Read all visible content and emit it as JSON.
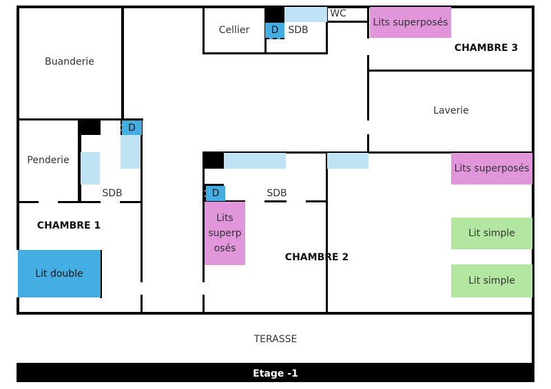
{
  "floor_label": "Etage -1",
  "rooms": {
    "buanderie": "Buanderie",
    "cellier": "Cellier",
    "sdb_top": "SDB",
    "wc": "WC",
    "chambre3": "CHAMBRE 3",
    "laverie": "Laverie",
    "penderie": "Penderie",
    "sdb1": "SDB",
    "chambre1": "CHAMBRE 1",
    "sdb2": "SDB",
    "chambre2": "CHAMBRE 2",
    "terasse": "TERASSE"
  },
  "furniture": {
    "shower": "D",
    "lits_superposes": "Lits superposés",
    "lits_superposes_split": [
      "Lits",
      "superp",
      "osés"
    ],
    "lit_double": "Lit double",
    "lit_simple": "Lit simple"
  },
  "colors": {
    "bunk_bed": "#e196dc",
    "double_bed": "#44aee3",
    "single_bed": "#b3e6a0",
    "fixture": "#bde3f4",
    "shower": "#44aee3"
  }
}
